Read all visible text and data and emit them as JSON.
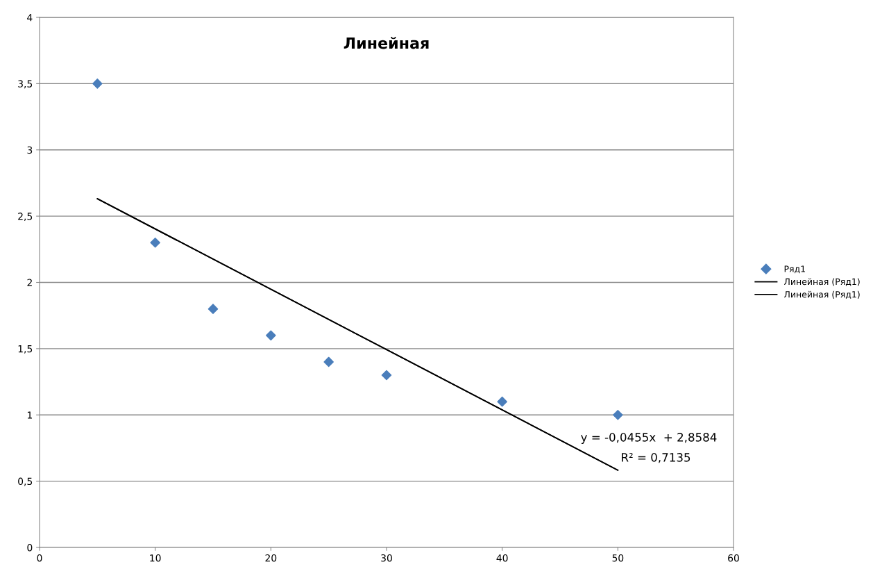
{
  "chart_data": {
    "type": "scatter",
    "title": "Линейная",
    "series": [
      {
        "name": "Ряд1",
        "color": "#4a7ebb",
        "marker": "diamond",
        "x": [
          5,
          10,
          15,
          20,
          25,
          30,
          40,
          50
        ],
        "values": [
          3.5,
          2.3,
          1.8,
          1.6,
          1.4,
          1.3,
          1.1,
          1.0
        ]
      },
      {
        "name": "Линейная (Ряд1)",
        "type": "line",
        "color": "#000000",
        "marker": "none",
        "x": [
          5,
          50
        ],
        "values": [
          2.631,
          0.583
        ]
      },
      {
        "name": "Линейная (Ряд1)",
        "type": "line",
        "color": "#000000",
        "marker": "none",
        "x": [
          5,
          50
        ],
        "values": [
          2.631,
          0.583
        ]
      }
    ],
    "annotations": [
      "y = -0,0455x  + 2,8584",
      "R² = 0,7135"
    ],
    "xlim": [
      0,
      60
    ],
    "xticks": [
      0,
      10,
      20,
      30,
      40,
      50,
      60
    ],
    "ylim": [
      0,
      4
    ],
    "yticks": [
      0,
      {
        "value": 0.5,
        "label": "0,5"
      },
      1,
      {
        "value": 1.5,
        "label": "1,5"
      },
      2,
      {
        "value": 2.5,
        "label": "2,5"
      },
      3,
      {
        "value": 3.5,
        "label": "3,5"
      },
      4
    ],
    "grid": "y",
    "legend": "right"
  }
}
